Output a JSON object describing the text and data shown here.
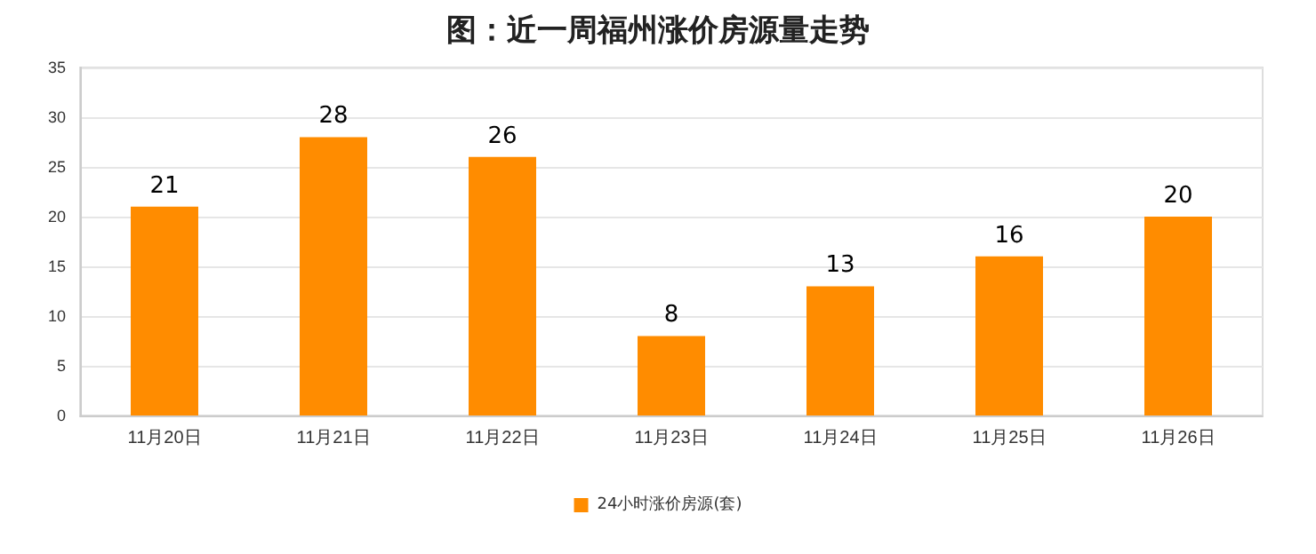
{
  "chart_data": {
    "type": "bar",
    "title": "图：近一周福州涨价房源量走势",
    "categories": [
      "11月20日",
      "11月21日",
      "11月22日",
      "11月23日",
      "11月24日",
      "11月25日",
      "11月26日"
    ],
    "series": [
      {
        "name": "24小时涨价房源(套)",
        "color": "#ff8c00",
        "values": [
          21,
          28,
          26,
          8,
          13,
          16,
          20
        ]
      }
    ],
    "ylim": [
      0,
      35
    ],
    "yticks": [
      0,
      5,
      10,
      15,
      20,
      25,
      30,
      35
    ],
    "grid": "y",
    "legend": "bottom",
    "data_labels": true
  }
}
